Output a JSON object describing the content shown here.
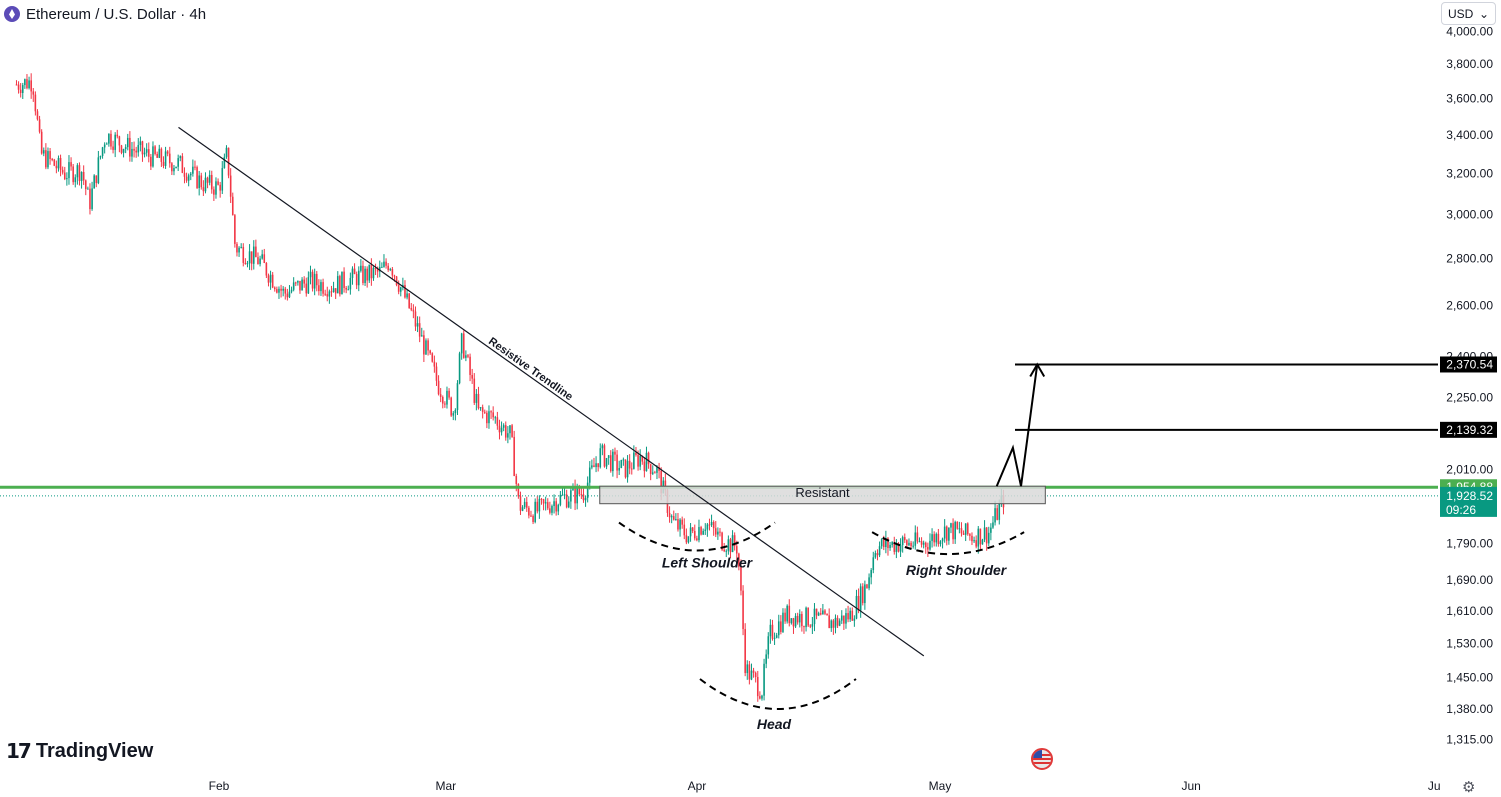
{
  "header": {
    "title": "Ethereum / U.S. Dollar · 4h",
    "currency": "USD"
  },
  "brand": {
    "name": "TradingView"
  },
  "colors": {
    "up": "#089981",
    "down": "#f23645",
    "green_line": "#4caf50",
    "zone_fill": "#d9d9d9"
  },
  "chart_data": {
    "type": "line",
    "title": "Ethereum / U.S. Dollar · 4h",
    "y_scale": "log",
    "ylim": [
      1300,
      4050
    ],
    "ytick_labels": [
      "4,000.00",
      "3,800.00",
      "3,600.00",
      "3,400.00",
      "3,200.00",
      "3,000.00",
      "2,800.00",
      "2,600.00",
      "2,400.00",
      "2,250.00",
      "2,010.00",
      "1,790.00",
      "1,690.00",
      "1,610.00",
      "1,530.00",
      "1,450.00",
      "1,380.00",
      "1,315.00"
    ],
    "ytick_values": [
      4000,
      3800,
      3600,
      3400,
      3200,
      3000,
      2800,
      2600,
      2400,
      2250,
      2010,
      1790,
      1690,
      1610,
      1530,
      1450,
      1380,
      1315
    ],
    "x_range": [
      "2025-01-07",
      "2025-06-30"
    ],
    "xtick_labels": [
      "Feb",
      "Mar",
      "Apr",
      "May",
      "Jun",
      "Ju"
    ],
    "xtick_dates": [
      "2025-02-01",
      "2025-03-01",
      "2025-04-01",
      "2025-05-01",
      "2025-06-01",
      "2025-07-01"
    ],
    "price_path": [
      [
        "2025-01-07",
        3680
      ],
      [
        "2025-01-09",
        3700
      ],
      [
        "2025-01-10",
        3300
      ],
      [
        "2025-01-13",
        3200
      ],
      [
        "2025-01-15",
        3220
      ],
      [
        "2025-01-16",
        3050
      ],
      [
        "2025-01-18",
        3400
      ],
      [
        "2025-01-21",
        3330
      ],
      [
        "2025-01-24",
        3280
      ],
      [
        "2025-01-27",
        3250
      ],
      [
        "2025-01-30",
        3150
      ],
      [
        "2025-02-01",
        3130
      ],
      [
        "2025-02-02",
        3300
      ],
      [
        "2025-02-03",
        2850
      ],
      [
        "2025-02-06",
        2790
      ],
      [
        "2025-02-09",
        2650
      ],
      [
        "2025-02-12",
        2700
      ],
      [
        "2025-02-15",
        2680
      ],
      [
        "2025-02-18",
        2720
      ],
      [
        "2025-02-21",
        2740
      ],
      [
        "2025-02-22",
        2790
      ],
      [
        "2025-02-25",
        2550
      ],
      [
        "2025-02-28",
        2300
      ],
      [
        "2025-03-02",
        2200
      ],
      [
        "2025-03-03",
        2460
      ],
      [
        "2025-03-05",
        2200
      ],
      [
        "2025-03-07",
        2180
      ],
      [
        "2025-03-09",
        2120
      ],
      [
        "2025-03-10",
        1900
      ],
      [
        "2025-03-12",
        1880
      ],
      [
        "2025-03-15",
        1920
      ],
      [
        "2025-03-18",
        1940
      ],
      [
        "2025-03-20",
        2060
      ],
      [
        "2025-03-23",
        2010
      ],
      [
        "2025-03-25",
        2050
      ],
      [
        "2025-03-27",
        2010
      ],
      [
        "2025-03-29",
        1850
      ],
      [
        "2025-03-31",
        1810
      ],
      [
        "2025-04-02",
        1850
      ],
      [
        "2025-04-04",
        1800
      ],
      [
        "2025-04-06",
        1780
      ],
      [
        "2025-04-07",
        1470
      ],
      [
        "2025-04-09",
        1420
      ],
      [
        "2025-04-10",
        1550
      ],
      [
        "2025-04-12",
        1600
      ],
      [
        "2025-04-15",
        1590
      ],
      [
        "2025-04-18",
        1580
      ],
      [
        "2025-04-20",
        1600
      ],
      [
        "2025-04-22",
        1680
      ],
      [
        "2025-04-23",
        1780
      ],
      [
        "2025-04-26",
        1790
      ],
      [
        "2025-04-29",
        1790
      ],
      [
        "2025-05-02",
        1830
      ],
      [
        "2025-05-05",
        1810
      ],
      [
        "2025-05-07",
        1820
      ],
      [
        "2025-05-09",
        1928.52
      ]
    ],
    "current_price": "1,928.52",
    "countdown": "09:26",
    "levels": [
      {
        "label": "1,954.88",
        "value": 1954.88
      },
      {
        "label": "2,139.32",
        "value": 2139.32
      },
      {
        "label": "2,370.54",
        "value": 2370.54
      }
    ],
    "resistant_zone": {
      "label": "Resistant",
      "from_date": "2025-03-20",
      "to_date": "2025-05-14",
      "low": 1905,
      "high": 1958
    },
    "trendline": {
      "label": "Resistive Trendline",
      "start": [
        "2025-01-27",
        3440
      ],
      "end": [
        "2025-04-29",
        1500
      ]
    },
    "projection": [
      [
        "2025-05-08",
        1958
      ],
      [
        "2025-05-10",
        2080
      ],
      [
        "2025-05-11",
        1958
      ],
      [
        "2025-05-13",
        2370.54
      ]
    ],
    "pattern": [
      {
        "label": "Left Shoulder",
        "date": "2025-04-01",
        "value": 1770
      },
      {
        "label": "Head",
        "date": "2025-04-11",
        "value": 1380
      },
      {
        "label": "Right Shoulder",
        "date": "2025-05-02",
        "value": 1760
      }
    ]
  }
}
